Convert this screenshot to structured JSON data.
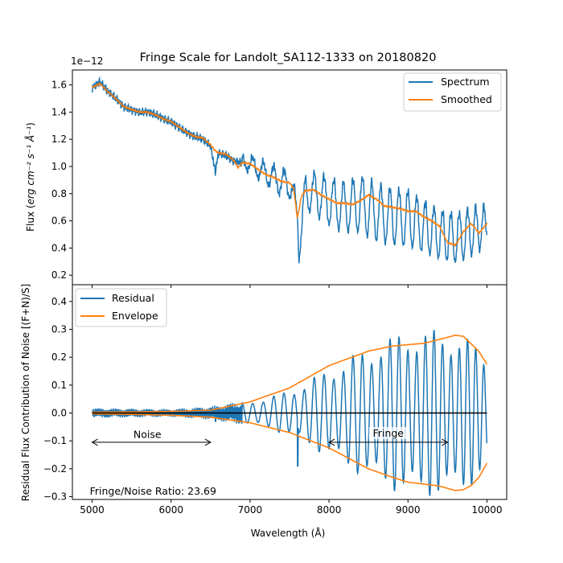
{
  "chart_data": [
    {
      "type": "line",
      "title": "Fringe Scale for Landolt_SA112-1333 on 20180820",
      "xlabel": "",
      "ylabel_prefix": "Flux (",
      "ylabel_units": "erg cm⁻² s⁻¹ Å⁻¹",
      "ylabel_suffix": ")",
      "offset_text": "1e−12",
      "xlim": [
        4750,
        10250
      ],
      "ylim": [
        0.13,
        1.71
      ],
      "xticks": [
        5000,
        6000,
        7000,
        8000,
        9000,
        10000
      ],
      "yticks": [
        0.2,
        0.4,
        0.6,
        0.8,
        1.0,
        1.2,
        1.4,
        1.6
      ],
      "ytick_labels": [
        "0.2",
        "0.4",
        "0.6",
        "0.8",
        "1.0",
        "1.2",
        "1.4",
        "1.6"
      ],
      "legend_position": "upper right",
      "colors": {
        "Spectrum": "#1f77b4",
        "Smoothed": "#ff7f0e"
      },
      "series": [
        {
          "name": "Spectrum",
          "sampling": "continuous spectrum, 5000–10000 Å, fringes begin near 7000 Å",
          "x": [
            5000,
            5100,
            5200,
            5300,
            5400,
            5500,
            5600,
            5700,
            5800,
            5900,
            6000,
            6100,
            6200,
            6300,
            6400,
            6500,
            6560,
            6600,
            6700,
            6800,
            6900,
            7000,
            7100,
            7200,
            7300,
            7400,
            7500,
            7600,
            7620,
            7700,
            7800,
            7900,
            8000,
            8200,
            8400,
            8600,
            8800,
            9000,
            9200,
            9400,
            9600,
            9800,
            10000
          ],
          "y": [
            1.58,
            1.62,
            1.55,
            1.5,
            1.44,
            1.42,
            1.4,
            1.4,
            1.38,
            1.35,
            1.33,
            1.29,
            1.25,
            1.22,
            1.2,
            1.15,
            0.96,
            1.1,
            1.08,
            1.04,
            1.03,
            1.02,
            0.98,
            0.95,
            0.92,
            0.88,
            0.88,
            0.66,
            0.35,
            0.82,
            0.8,
            0.78,
            0.74,
            0.7,
            0.72,
            0.66,
            0.63,
            0.62,
            0.56,
            0.5,
            0.47,
            0.52,
            0.57
          ]
        },
        {
          "name": "Smoothed",
          "x": [
            5000,
            5100,
            5200,
            5300,
            5400,
            5500,
            5600,
            5700,
            5800,
            5900,
            6000,
            6100,
            6200,
            6300,
            6400,
            6500,
            6550,
            6600,
            6700,
            6800,
            6850,
            6900,
            7000,
            7100,
            7200,
            7300,
            7400,
            7500,
            7550,
            7600,
            7650,
            7700,
            7800,
            7900,
            8000,
            8100,
            8200,
            8300,
            8400,
            8500,
            8600,
            8700,
            8800,
            8900,
            9000,
            9100,
            9200,
            9300,
            9400,
            9500,
            9600,
            9700,
            9800,
            9900,
            10000
          ],
          "y": [
            1.58,
            1.61,
            1.55,
            1.5,
            1.44,
            1.42,
            1.4,
            1.4,
            1.38,
            1.35,
            1.33,
            1.29,
            1.25,
            1.22,
            1.21,
            1.16,
            1.12,
            1.1,
            1.09,
            1.04,
            0.99,
            1.03,
            1.02,
            0.98,
            0.94,
            0.92,
            0.89,
            0.88,
            0.84,
            0.62,
            0.78,
            0.82,
            0.83,
            0.79,
            0.76,
            0.73,
            0.73,
            0.72,
            0.75,
            0.79,
            0.76,
            0.71,
            0.7,
            0.69,
            0.67,
            0.67,
            0.63,
            0.6,
            0.56,
            0.44,
            0.42,
            0.52,
            0.58,
            0.51,
            0.58
          ]
        }
      ]
    },
    {
      "type": "line",
      "title": "",
      "xlabel": "Wavelength (Å)",
      "ylabel": "Residual Flux Contribution of Noise [(F+N)/S]",
      "xlim": [
        4750,
        10250
      ],
      "ylim": [
        -0.31,
        0.46
      ],
      "xticks": [
        5000,
        6000,
        7000,
        8000,
        9000,
        10000
      ],
      "yticks": [
        -0.3,
        -0.2,
        -0.1,
        0.0,
        0.1,
        0.2,
        0.3,
        0.4
      ],
      "ytick_labels": [
        "−0.3",
        "−0.2",
        "−0.1",
        "0.0",
        "0.1",
        "0.2",
        "0.3",
        "0.4"
      ],
      "legend_position": "upper left",
      "colors": {
        "Residual": "#1f77b4",
        "Envelope": "#ff7f0e",
        "zero": "#000000"
      },
      "series": [
        {
          "name": "Residual",
          "amplitude_x": [
            5000,
            6000,
            6500,
            7000,
            7500,
            8000,
            8500,
            9000,
            9500,
            9700,
            10000
          ],
          "amplitude_y": [
            0.015,
            0.012,
            0.02,
            0.04,
            0.08,
            0.16,
            0.24,
            0.3,
            0.3,
            0.28,
            0.22
          ]
        },
        {
          "name": "Envelope",
          "x": [
            5000,
            5500,
            6000,
            6500,
            7000,
            7500,
            8000,
            8500,
            8800,
            9000,
            9200,
            9400,
            9600,
            9700,
            9800,
            9900,
            10000
          ],
          "upper": [
            0.003,
            0.004,
            0.006,
            0.01,
            0.04,
            0.09,
            0.17,
            0.222,
            0.24,
            0.245,
            0.25,
            0.264,
            0.279,
            0.275,
            0.248,
            0.22,
            0.175
          ],
          "lower": [
            -0.003,
            -0.005,
            -0.008,
            -0.015,
            -0.035,
            -0.07,
            -0.125,
            -0.2,
            -0.23,
            -0.248,
            -0.255,
            -0.262,
            -0.278,
            -0.275,
            -0.26,
            -0.23,
            -0.18
          ]
        }
      ],
      "annotations": [
        {
          "text": "Noise",
          "x": 5700,
          "y": -0.09,
          "arrow_from": 5000,
          "arrow_to": 6500,
          "arrow_y": -0.105
        },
        {
          "text": "Fringe",
          "x": 8750,
          "y": -0.085,
          "arrow_from": 8000,
          "arrow_to": 9500,
          "arrow_y": -0.105
        },
        {
          "text": "Fringe/Noise Ratio: 23.69",
          "x": 4970,
          "y": -0.292
        }
      ]
    }
  ]
}
